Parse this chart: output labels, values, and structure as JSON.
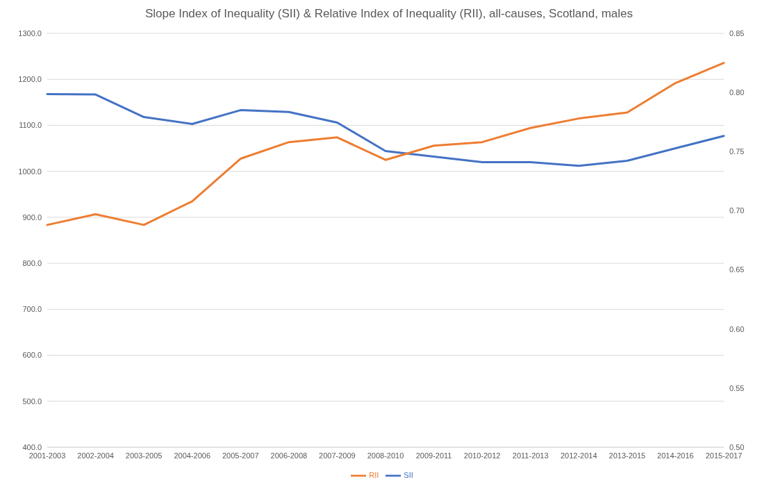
{
  "chart_data": {
    "type": "line",
    "title": "Slope Index of Inequality (SII) & Relative Index of Inequality (RII), all-causes, Scotland, males",
    "categories": [
      "2001-2003",
      "2002-2004",
      "2003-2005",
      "2004-2006",
      "2005-2007",
      "2006-2008",
      "2007-2009",
      "2008-2010",
      "2009-2011",
      "2010-2012",
      "2011-2013",
      "2012-2014",
      "2013-2015",
      "2014-2016",
      "2015-2017"
    ],
    "series": [
      {
        "name": "SII",
        "color": "#4472c4",
        "values": [
          1168,
          1167,
          1118,
          1103,
          1133,
          1129,
          1106,
          1044,
          1032,
          1020,
          1020,
          1012,
          1023,
          1050,
          1077
        ]
      },
      {
        "name": "RII",
        "color": "#ed7d31",
        "axis": "y2",
        "values": [
          0.688,
          0.697,
          0.688,
          0.708,
          0.744,
          0.758,
          0.762,
          0.743,
          0.755,
          0.758,
          0.77,
          0.778,
          0.783,
          0.808,
          0.825
        ]
      }
    ],
    "ylim": [
      400,
      1300
    ],
    "yticks": [
      {
        "value": 400,
        "label": "400.0"
      },
      {
        "value": 500,
        "label": "500.0"
      },
      {
        "value": 600,
        "label": "600.0"
      },
      {
        "value": 700,
        "label": "700.0"
      },
      {
        "value": 800,
        "label": "800.0"
      },
      {
        "value": 900,
        "label": "900.0"
      },
      {
        "value": 1000,
        "label": "1000.0"
      },
      {
        "value": 1100,
        "label": "1100.0"
      },
      {
        "value": 1200,
        "label": "1200.0"
      },
      {
        "value": 1300,
        "label": "1300.0"
      }
    ],
    "y2lim": [
      0.5,
      0.85
    ],
    "y2ticks": [
      {
        "value": 0.5,
        "label": "0.50"
      },
      {
        "value": 0.55,
        "label": "0.55"
      },
      {
        "value": 0.6,
        "label": "0.60"
      },
      {
        "value": 0.65,
        "label": "0.65"
      },
      {
        "value": 0.7,
        "label": "0.70"
      },
      {
        "value": 0.75,
        "label": "0.75"
      },
      {
        "value": 0.8,
        "label": "0.80"
      },
      {
        "value": 0.85,
        "label": "0.85"
      }
    ],
    "grid": "y",
    "legend": "bottom",
    "marker": "none",
    "line_style": "solid"
  }
}
